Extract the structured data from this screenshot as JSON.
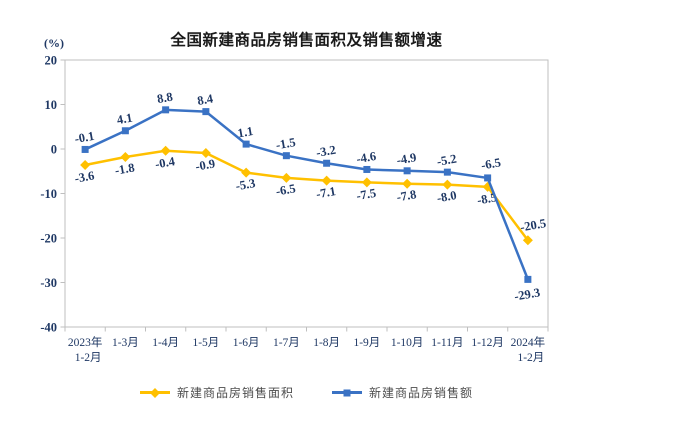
{
  "chart_data": {
    "type": "line",
    "title": "全国新建商品房销售面积及销售额增速",
    "ylabel": "(%)",
    "xlabel": "",
    "grid": false,
    "legend_position": "bottom",
    "ylim": [
      -40,
      20
    ],
    "y_ticks": [
      20,
      10,
      0,
      -10,
      -20,
      -30,
      -40
    ],
    "categories": [
      "2023年\n1-2月",
      "1-3月",
      "1-4月",
      "1-5月",
      "1-6月",
      "1-7月",
      "1-8月",
      "1-9月",
      "1-10月",
      "1-11月",
      "1-12月",
      "2024年\n1-2月"
    ],
    "series": [
      {
        "name": "新建商品房销售面积",
        "color": "#FFC000",
        "marker": "diamond",
        "label_position": "below",
        "values": [
          -3.6,
          -1.8,
          -0.4,
          -0.9,
          -5.3,
          -6.5,
          -7.1,
          -7.5,
          -7.8,
          -8.0,
          -8.5,
          -20.5
        ],
        "labels": [
          "-3.6",
          "-1.8",
          "-0.4",
          "-0.9",
          "-5.3",
          "-6.5",
          "-7.1",
          "-7.5",
          "-7.8",
          "-8.0",
          "-8.5",
          "-20.5"
        ]
      },
      {
        "name": "新建商品房销售额",
        "color": "#3A72C4",
        "marker": "square",
        "label_position": "above",
        "values": [
          -0.1,
          4.1,
          8.8,
          8.4,
          1.1,
          -1.5,
          -3.2,
          -4.6,
          -4.9,
          -5.2,
          -6.5,
          -29.3
        ],
        "labels": [
          "-0.1",
          "4.1",
          "8.8",
          "8.4",
          "1.1",
          "-1.5",
          "-3.2",
          "-4.6",
          "-4.9",
          "-5.2",
          "-6.5",
          "-29.3"
        ]
      }
    ],
    "colors": {
      "axis_line": "#BFBFBF",
      "tick_label": "#1f3864",
      "data_label": "#1f3864",
      "title": "#1a1a1a",
      "legend_text": "#4d4d4d",
      "background": "#ffffff"
    }
  }
}
